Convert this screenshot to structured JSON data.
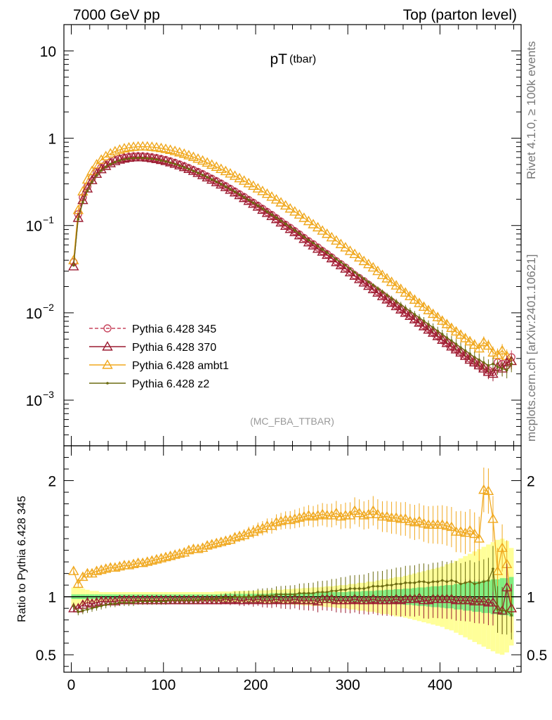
{
  "header": {
    "left": "7000 GeV pp",
    "right": "Top (parton level)"
  },
  "side_labels": {
    "rivet": "Rivet 4.1.0, ≥ 100k events",
    "mcplots": "mcplots.cern.ch [arXiv:2401.10621]"
  },
  "chart_data": [
    {
      "type": "line",
      "title": "pT",
      "title_sub": "(tbar)",
      "watermark": "(MC_FBA_TTBAR)",
      "xlabel": "",
      "ylabel": "",
      "yscale": "log",
      "xlim": [
        -8,
        488
      ],
      "ylim": [
        0.0003,
        20
      ],
      "xticks": [
        0,
        100,
        200,
        300,
        400
      ],
      "yticks": [
        {
          "value": 10,
          "label": "10",
          "sup": ""
        },
        {
          "value": 1,
          "label": "1",
          "sup": ""
        },
        {
          "value": 0.1,
          "label": "10",
          "sup": "−1"
        },
        {
          "value": 0.01,
          "label": "10",
          "sup": "−2"
        },
        {
          "value": 0.001,
          "label": "10",
          "sup": "−3"
        }
      ],
      "legend_position": "bottom-left",
      "x": [
        2.5,
        7.5,
        12.5,
        17.5,
        22.5,
        27.5,
        32.5,
        37.5,
        42.5,
        47.5,
        52.5,
        57.5,
        62.5,
        67.5,
        72.5,
        77.5,
        82.5,
        87.5,
        92.5,
        97.5,
        102.5,
        107.5,
        112.5,
        117.5,
        122.5,
        127.5,
        132.5,
        137.5,
        142.5,
        147.5,
        152.5,
        157.5,
        162.5,
        167.5,
        172.5,
        177.5,
        182.5,
        187.5,
        192.5,
        197.5,
        202.5,
        207.5,
        212.5,
        217.5,
        222.5,
        227.5,
        232.5,
        237.5,
        242.5,
        247.5,
        252.5,
        257.5,
        262.5,
        267.5,
        272.5,
        277.5,
        282.5,
        287.5,
        292.5,
        297.5,
        302.5,
        307.5,
        312.5,
        317.5,
        322.5,
        327.5,
        332.5,
        337.5,
        342.5,
        347.5,
        352.5,
        357.5,
        362.5,
        367.5,
        372.5,
        377.5,
        382.5,
        387.5,
        392.5,
        397.5,
        402.5,
        407.5,
        412.5,
        417.5,
        422.5,
        427.5,
        432.5,
        437.5,
        442.5,
        447.5,
        452.5,
        457.5,
        462.5,
        467.5,
        472.5,
        477.5
      ],
      "series": [
        {
          "name": "Pythia 6.428 345",
          "color": "#c8475f",
          "marker": "circle",
          "dashed": true,
          "values": [
            0.038,
            0.135,
            0.21,
            0.28,
            0.35,
            0.41,
            0.46,
            0.5,
            0.535,
            0.565,
            0.585,
            0.6,
            0.612,
            0.62,
            0.622,
            0.62,
            0.615,
            0.605,
            0.592,
            0.578,
            0.562,
            0.543,
            0.522,
            0.5,
            0.478,
            0.455,
            0.432,
            0.41,
            0.388,
            0.365,
            0.343,
            0.322,
            0.302,
            0.282,
            0.263,
            0.245,
            0.228,
            0.212,
            0.196,
            0.182,
            0.168,
            0.155,
            0.143,
            0.132,
            0.121,
            0.111,
            0.102,
            0.094,
            0.086,
            0.079,
            0.072,
            0.066,
            0.061,
            0.056,
            0.051,
            0.047,
            0.043,
            0.039,
            0.036,
            0.033,
            0.03,
            0.027,
            0.025,
            0.023,
            0.021,
            0.019,
            0.0175,
            0.016,
            0.0146,
            0.0134,
            0.0122,
            0.0112,
            0.0102,
            0.0094,
            0.0086,
            0.0078,
            0.0072,
            0.0066,
            0.006,
            0.0055,
            0.005,
            0.0046,
            0.0042,
            0.0039,
            0.0036,
            0.0033,
            0.003,
            0.0028,
            0.0026,
            0.0024,
            0.0022,
            0.0021,
            0.0027,
            0.0026,
            0.0025,
            0.0031
          ]
        },
        {
          "name": "Pythia 6.428 370",
          "color": "#9b1b30",
          "marker": "triangle",
          "dashed": false,
          "values": [
            0.034,
            0.122,
            0.195,
            0.265,
            0.33,
            0.39,
            0.44,
            0.48,
            0.515,
            0.545,
            0.567,
            0.583,
            0.595,
            0.602,
            0.605,
            0.603,
            0.598,
            0.588,
            0.576,
            0.562,
            0.546,
            0.528,
            0.508,
            0.487,
            0.465,
            0.443,
            0.421,
            0.399,
            0.377,
            0.355,
            0.334,
            0.313,
            0.294,
            0.275,
            0.256,
            0.239,
            0.222,
            0.206,
            0.191,
            0.177,
            0.164,
            0.151,
            0.139,
            0.128,
            0.118,
            0.108,
            0.099,
            0.091,
            0.084,
            0.077,
            0.07,
            0.064,
            0.059,
            0.054,
            0.05,
            0.046,
            0.042,
            0.038,
            0.035,
            0.032,
            0.029,
            0.0265,
            0.0243,
            0.0222,
            0.0203,
            0.0186,
            0.017,
            0.0155,
            0.0142,
            0.013,
            0.0119,
            0.0109,
            0.01,
            0.0092,
            0.0084,
            0.0077,
            0.007,
            0.0064,
            0.0059,
            0.0054,
            0.0049,
            0.0045,
            0.0041,
            0.0038,
            0.0035,
            0.0032,
            0.0029,
            0.0027,
            0.0025,
            0.0023,
            0.0021,
            0.002,
            0.0024,
            0.0023,
            0.0027,
            0.0028
          ]
        },
        {
          "name": "Pythia 6.428 ambt1",
          "color": "#f0a81e",
          "marker": "triangle",
          "dashed": false,
          "values": [
            0.04,
            0.15,
            0.245,
            0.335,
            0.42,
            0.5,
            0.565,
            0.62,
            0.667,
            0.705,
            0.737,
            0.762,
            0.78,
            0.793,
            0.8,
            0.802,
            0.8,
            0.793,
            0.782,
            0.768,
            0.751,
            0.732,
            0.71,
            0.686,
            0.661,
            0.635,
            0.608,
            0.58,
            0.552,
            0.524,
            0.496,
            0.469,
            0.443,
            0.418,
            0.393,
            0.37,
            0.347,
            0.325,
            0.304,
            0.284,
            0.265,
            0.247,
            0.23,
            0.213,
            0.198,
            0.183,
            0.169,
            0.156,
            0.144,
            0.133,
            0.122,
            0.112,
            0.103,
            0.095,
            0.087,
            0.08,
            0.073,
            0.067,
            0.061,
            0.056,
            0.051,
            0.047,
            0.043,
            0.039,
            0.036,
            0.033,
            0.03,
            0.027,
            0.0247,
            0.0225,
            0.0205,
            0.0187,
            0.017,
            0.0155,
            0.0141,
            0.0129,
            0.0117,
            0.0107,
            0.0097,
            0.0089,
            0.0081,
            0.0074,
            0.0067,
            0.0061,
            0.0056,
            0.0051,
            0.0047,
            0.0043,
            0.0039,
            0.0046,
            0.0042,
            0.0035,
            0.0033,
            0.0037,
            0.0032,
            0.0028
          ]
        },
        {
          "name": "Pythia 6.428 z2",
          "color": "#6b6b10",
          "marker": "dot",
          "dashed": false,
          "values": [
            0.035,
            0.118,
            0.185,
            0.25,
            0.315,
            0.375,
            0.425,
            0.468,
            0.503,
            0.532,
            0.555,
            0.572,
            0.584,
            0.592,
            0.595,
            0.594,
            0.589,
            0.58,
            0.569,
            0.556,
            0.541,
            0.524,
            0.505,
            0.485,
            0.464,
            0.443,
            0.421,
            0.4,
            0.379,
            0.358,
            0.337,
            0.317,
            0.298,
            0.279,
            0.261,
            0.244,
            0.227,
            0.211,
            0.196,
            0.182,
            0.169,
            0.156,
            0.144,
            0.133,
            0.123,
            0.113,
            0.104,
            0.096,
            0.088,
            0.081,
            0.074,
            0.068,
            0.063,
            0.058,
            0.053,
            0.049,
            0.045,
            0.041,
            0.038,
            0.035,
            0.032,
            0.029,
            0.0268,
            0.0246,
            0.0226,
            0.0208,
            0.0191,
            0.0175,
            0.016,
            0.0147,
            0.0135,
            0.0124,
            0.0114,
            0.0105,
            0.0096,
            0.0088,
            0.0081,
            0.0074,
            0.0068,
            0.0062,
            0.0057,
            0.0052,
            0.0048,
            0.0044,
            0.004,
            0.0037,
            0.0034,
            0.0031,
            0.0029,
            0.0027,
            0.0025,
            0.0026,
            0.0024,
            0.0023,
            0.0022,
            0.0026
          ]
        }
      ]
    },
    {
      "type": "line",
      "title": "",
      "xlabel": "",
      "ylabel": "Ratio to Pythia 6.428 345",
      "yscale": "linear",
      "xlim": [
        -8,
        488
      ],
      "ylim": [
        0.35,
        2.3
      ],
      "xticks": [
        0,
        100,
        200,
        300,
        400
      ],
      "yticks": [
        {
          "value": 0.5,
          "label": "0.5"
        },
        {
          "value": 1,
          "label": "1"
        },
        {
          "value": 2,
          "label": "2"
        }
      ],
      "reference_line": 1,
      "band_colors": {
        "inner": "#80ee80",
        "outer": "#ffff99"
      },
      "band_inner_halfwidth": [
        0.02,
        0.02,
        0.02,
        0.02,
        0.02,
        0.02,
        0.02,
        0.02,
        0.02,
        0.02,
        0.02,
        0.02,
        0.02,
        0.02,
        0.02,
        0.02,
        0.02,
        0.02,
        0.02,
        0.02,
        0.02,
        0.02,
        0.02,
        0.02,
        0.02,
        0.02,
        0.02,
        0.02,
        0.02,
        0.02,
        0.02,
        0.02,
        0.02,
        0.025,
        0.025,
        0.025,
        0.025,
        0.025,
        0.025,
        0.025,
        0.025,
        0.025,
        0.025,
        0.03,
        0.03,
        0.03,
        0.03,
        0.03,
        0.03,
        0.03,
        0.035,
        0.035,
        0.035,
        0.035,
        0.035,
        0.04,
        0.04,
        0.04,
        0.04,
        0.04,
        0.045,
        0.045,
        0.045,
        0.05,
        0.05,
        0.05,
        0.055,
        0.055,
        0.06,
        0.06,
        0.065,
        0.065,
        0.07,
        0.07,
        0.075,
        0.08,
        0.08,
        0.085,
        0.09,
        0.09,
        0.095,
        0.1,
        0.1,
        0.11,
        0.11,
        0.12,
        0.12,
        0.13,
        0.13,
        0.14,
        0.14,
        0.15,
        0.15,
        0.16,
        0.16,
        0.17
      ],
      "band_outer_halfwidth": [
        0.08,
        0.08,
        0.07,
        0.06,
        0.05,
        0.05,
        0.04,
        0.04,
        0.04,
        0.04,
        0.04,
        0.04,
        0.04,
        0.04,
        0.04,
        0.04,
        0.04,
        0.04,
        0.04,
        0.04,
        0.04,
        0.04,
        0.04,
        0.04,
        0.04,
        0.04,
        0.04,
        0.04,
        0.04,
        0.04,
        0.04,
        0.045,
        0.045,
        0.045,
        0.045,
        0.05,
        0.05,
        0.05,
        0.05,
        0.05,
        0.055,
        0.055,
        0.055,
        0.06,
        0.06,
        0.06,
        0.065,
        0.065,
        0.07,
        0.07,
        0.075,
        0.075,
        0.08,
        0.08,
        0.085,
        0.09,
        0.09,
        0.095,
        0.1,
        0.1,
        0.11,
        0.11,
        0.12,
        0.12,
        0.13,
        0.13,
        0.14,
        0.15,
        0.15,
        0.16,
        0.17,
        0.17,
        0.18,
        0.19,
        0.2,
        0.21,
        0.22,
        0.23,
        0.24,
        0.25,
        0.26,
        0.28,
        0.29,
        0.31,
        0.33,
        0.35,
        0.37,
        0.39,
        0.41,
        0.43,
        0.45,
        0.47,
        0.49,
        0.5,
        0.48,
        0.42
      ],
      "series": [
        {
          "name": "Pythia 6.428 370",
          "color": "#9b1b30",
          "marker": "triangle",
          "values": [
            0.9,
            0.9,
            0.93,
            0.95,
            0.94,
            0.95,
            0.96,
            0.96,
            0.96,
            0.96,
            0.97,
            0.97,
            0.97,
            0.97,
            0.97,
            0.97,
            0.97,
            0.97,
            0.97,
            0.97,
            0.97,
            0.97,
            0.97,
            0.97,
            0.97,
            0.97,
            0.97,
            0.97,
            0.97,
            0.97,
            0.97,
            0.97,
            0.97,
            0.98,
            0.97,
            0.98,
            0.97,
            0.97,
            0.98,
            0.97,
            0.98,
            0.97,
            0.97,
            0.97,
            0.98,
            0.97,
            0.97,
            0.97,
            0.98,
            0.97,
            0.97,
            0.97,
            0.97,
            0.96,
            0.98,
            0.98,
            0.98,
            0.97,
            0.97,
            0.97,
            0.97,
            0.98,
            0.97,
            0.97,
            0.97,
            0.98,
            0.97,
            0.97,
            0.97,
            0.97,
            0.98,
            0.97,
            0.98,
            0.98,
            0.98,
            0.99,
            0.97,
            0.97,
            0.98,
            0.98,
            0.98,
            0.98,
            0.98,
            0.97,
            0.97,
            0.97,
            0.97,
            0.96,
            0.96,
            0.96,
            0.95,
            0.95,
            0.89,
            0.88,
            1.08,
            0.9
          ]
        },
        {
          "name": "Pythia 6.428 ambt1",
          "color": "#f0a81e",
          "marker": "triangle",
          "values": [
            1.22,
            1.11,
            1.17,
            1.2,
            1.2,
            1.22,
            1.23,
            1.24,
            1.25,
            1.25,
            1.26,
            1.27,
            1.27,
            1.28,
            1.29,
            1.29,
            1.3,
            1.31,
            1.32,
            1.33,
            1.34,
            1.35,
            1.36,
            1.37,
            1.38,
            1.4,
            1.41,
            1.41,
            1.42,
            1.44,
            1.45,
            1.46,
            1.47,
            1.48,
            1.49,
            1.51,
            1.52,
            1.53,
            1.55,
            1.56,
            1.58,
            1.59,
            1.61,
            1.61,
            1.64,
            1.65,
            1.66,
            1.66,
            1.67,
            1.68,
            1.69,
            1.7,
            1.69,
            1.7,
            1.71,
            1.7,
            1.7,
            1.72,
            1.69,
            1.7,
            1.7,
            1.74,
            1.72,
            1.7,
            1.71,
            1.74,
            1.71,
            1.69,
            1.69,
            1.68,
            1.68,
            1.67,
            1.67,
            1.65,
            1.64,
            1.65,
            1.63,
            1.62,
            1.62,
            1.62,
            1.62,
            1.61,
            1.6,
            1.56,
            1.56,
            1.55,
            1.57,
            1.54,
            1.5,
            1.92,
            1.91,
            1.67,
            1.22,
            1.42,
            1.28,
            0.9
          ]
        },
        {
          "name": "Pythia 6.428 z2",
          "color": "#6b6b10",
          "marker": "dot",
          "values": [
            0.92,
            0.87,
            0.88,
            0.89,
            0.9,
            0.91,
            0.92,
            0.93,
            0.94,
            0.94,
            0.95,
            0.95,
            0.95,
            0.95,
            0.96,
            0.96,
            0.96,
            0.96,
            0.96,
            0.96,
            0.96,
            0.97,
            0.97,
            0.97,
            0.97,
            0.97,
            0.97,
            0.97,
            0.98,
            0.98,
            0.98,
            0.98,
            0.99,
            0.99,
            0.99,
            1.0,
            1.0,
            1.0,
            1.0,
            1.0,
            1.01,
            1.01,
            1.01,
            1.01,
            1.02,
            1.02,
            1.02,
            1.02,
            1.02,
            1.03,
            1.03,
            1.03,
            1.03,
            1.04,
            1.04,
            1.04,
            1.05,
            1.05,
            1.06,
            1.06,
            1.07,
            1.07,
            1.07,
            1.07,
            1.08,
            1.09,
            1.09,
            1.09,
            1.1,
            1.1,
            1.11,
            1.11,
            1.12,
            1.12,
            1.12,
            1.13,
            1.13,
            1.12,
            1.13,
            1.13,
            1.14,
            1.13,
            1.14,
            1.13,
            1.11,
            1.12,
            1.13,
            1.11,
            1.12,
            1.13,
            1.14,
            1.24,
            0.89,
            0.88,
            0.88,
            0.84
          ]
        }
      ]
    }
  ]
}
